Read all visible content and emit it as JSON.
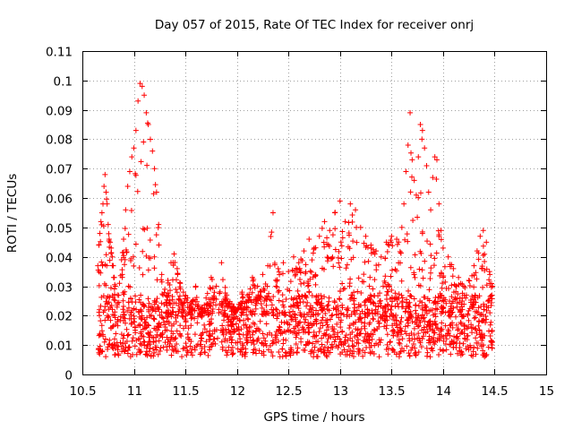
{
  "chart_data": {
    "type": "scatter",
    "title": "Day 057 of 2015, Rate Of TEC Index for receiver onrj",
    "xlabel": "GPS time / hours",
    "ylabel": "ROTI / TECUs",
    "xlim": [
      10.5,
      15
    ],
    "ylim": [
      0,
      0.11
    ],
    "x_ticks": [
      "10.5",
      "11",
      "11.5",
      "12",
      "12.5",
      "13",
      "13.5",
      "14",
      "14.5",
      "15"
    ],
    "y_ticks": [
      "0",
      "0.01",
      "0.02",
      "0.03",
      "0.04",
      "0.05",
      "0.06",
      "0.07",
      "0.08",
      "0.09",
      "0.1",
      "0.11"
    ],
    "grid": true,
    "marker": "+",
    "color": "#ff0000",
    "series": [
      {
        "name": "onrj",
        "x": [
          10.65,
          10.66,
          10.67,
          10.68,
          10.69,
          10.7,
          10.71,
          10.72,
          10.73,
          10.74,
          10.75,
          10.76,
          10.77,
          10.78,
          10.79,
          10.8,
          10.81,
          10.82,
          10.84,
          10.86,
          10.88,
          10.9,
          10.92,
          10.94,
          10.96,
          10.98,
          11.0,
          11.02,
          11.04,
          11.06,
          11.08,
          11.1,
          11.12,
          11.14,
          11.16,
          11.18,
          11.2,
          11.22,
          11.24,
          11.27,
          11.3,
          11.33,
          11.36,
          11.39,
          11.42,
          11.45,
          11.48,
          11.52,
          11.56,
          11.6,
          11.65,
          11.7,
          11.75,
          11.8,
          11.85,
          11.9,
          11.95,
          12.0,
          12.05,
          12.1,
          12.15,
          12.2,
          12.25,
          12.3,
          12.35,
          12.4,
          12.45,
          12.5,
          12.55,
          12.6,
          12.65,
          12.7,
          12.75,
          12.8,
          12.85,
          12.9,
          12.95,
          13.0,
          13.05,
          13.1,
          13.15,
          13.2,
          13.25,
          13.3,
          13.35,
          13.4,
          13.45,
          13.5,
          13.55,
          13.6,
          13.62,
          13.64,
          13.66,
          13.68,
          13.7,
          13.72,
          13.74,
          13.76,
          13.78,
          13.8,
          13.82,
          13.84,
          13.86,
          13.88,
          13.9,
          13.92,
          13.94,
          13.96,
          13.98,
          14.0,
          14.05,
          14.1,
          14.15,
          14.2,
          14.25,
          14.3,
          14.33,
          14.36,
          14.39,
          14.42,
          14.45,
          14.48
        ],
        "y": [
          0.037,
          0.044,
          0.048,
          0.052,
          0.055,
          0.058,
          0.064,
          0.068,
          0.062,
          0.058,
          0.051,
          0.046,
          0.045,
          0.043,
          0.04,
          0.037,
          0.033,
          0.03,
          0.027,
          0.031,
          0.039,
          0.046,
          0.056,
          0.064,
          0.069,
          0.074,
          0.077,
          0.083,
          0.093,
          0.099,
          0.098,
          0.095,
          0.089,
          0.085,
          0.08,
          0.076,
          0.07,
          0.062,
          0.051,
          0.034,
          0.029,
          0.032,
          0.038,
          0.041,
          0.036,
          0.031,
          0.028,
          0.026,
          0.024,
          0.03,
          0.022,
          0.026,
          0.033,
          0.03,
          0.038,
          0.027,
          0.024,
          0.022,
          0.028,
          0.027,
          0.033,
          0.03,
          0.034,
          0.037,
          0.055,
          0.036,
          0.038,
          0.035,
          0.04,
          0.038,
          0.042,
          0.046,
          0.043,
          0.047,
          0.052,
          0.049,
          0.055,
          0.059,
          0.052,
          0.058,
          0.056,
          0.05,
          0.047,
          0.044,
          0.042,
          0.04,
          0.045,
          0.047,
          0.046,
          0.05,
          0.058,
          0.069,
          0.078,
          0.089,
          0.073,
          0.066,
          0.061,
          0.074,
          0.085,
          0.083,
          0.077,
          0.071,
          0.062,
          0.056,
          0.067,
          0.074,
          0.073,
          0.058,
          0.049,
          0.043,
          0.04,
          0.036,
          0.033,
          0.03,
          0.032,
          0.037,
          0.042,
          0.047,
          0.049,
          0.045,
          0.035,
          0.03
        ],
        "note": "Upper envelope of the dense cloud; the bulk of points lies between about 0.006 and 0.03 across 10.65-14.5 h"
      }
    ]
  }
}
